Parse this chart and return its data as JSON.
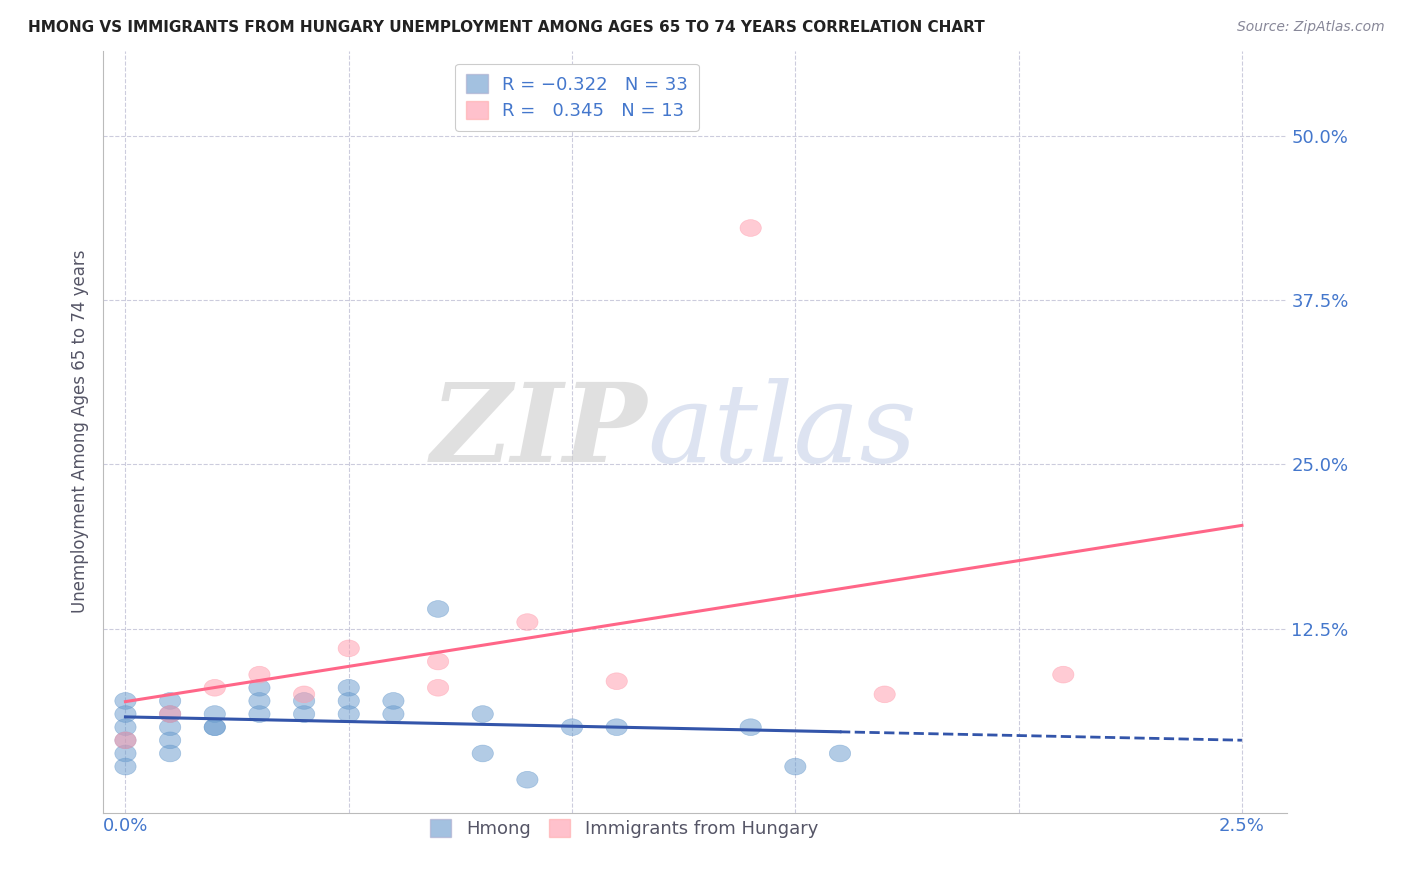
{
  "title": "HMONG VS IMMIGRANTS FROM HUNGARY UNEMPLOYMENT AMONG AGES 65 TO 74 YEARS CORRELATION CHART",
  "source": "Source: ZipAtlas.com",
  "ylabel": "Unemployment Among Ages 65 to 74 years",
  "ytick_labels": [
    "50.0%",
    "37.5%",
    "25.0%",
    "12.5%"
  ],
  "ytick_values": [
    0.5,
    0.375,
    0.25,
    0.125
  ],
  "xlim": [
    -0.0005,
    0.026
  ],
  "ylim": [
    -0.015,
    0.565
  ],
  "blue_color": "#6699CC",
  "pink_color": "#FF99AA",
  "blue_line_color": "#3355AA",
  "pink_line_color": "#FF6688",
  "axis_label_color": "#4477CC",
  "title_color": "#222222",
  "grid_color": "#CCCCDD",
  "hmong_x": [
    0.0,
    0.0,
    0.0,
    0.0,
    0.0,
    0.0,
    0.001,
    0.001,
    0.001,
    0.001,
    0.001,
    0.002,
    0.002,
    0.002,
    0.003,
    0.003,
    0.003,
    0.004,
    0.004,
    0.005,
    0.005,
    0.005,
    0.006,
    0.006,
    0.007,
    0.008,
    0.008,
    0.009,
    0.01,
    0.011,
    0.014,
    0.015,
    0.016
  ],
  "hmong_y": [
    0.05,
    0.06,
    0.07,
    0.03,
    0.04,
    0.02,
    0.05,
    0.06,
    0.07,
    0.04,
    0.03,
    0.05,
    0.06,
    0.05,
    0.06,
    0.07,
    0.08,
    0.07,
    0.06,
    0.06,
    0.07,
    0.08,
    0.06,
    0.07,
    0.14,
    0.06,
    0.03,
    0.01,
    0.05,
    0.05,
    0.05,
    0.02,
    0.03
  ],
  "hungary_x": [
    0.0,
    0.001,
    0.002,
    0.003,
    0.004,
    0.005,
    0.007,
    0.007,
    0.009,
    0.011,
    0.014,
    0.017,
    0.021
  ],
  "hungary_y": [
    0.04,
    0.06,
    0.08,
    0.09,
    0.075,
    0.11,
    0.08,
    0.1,
    0.13,
    0.085,
    0.43,
    0.075,
    0.09
  ],
  "hmong_regression": [
    -2.5,
    0.068
  ],
  "hungary_regression": [
    9.5,
    0.03
  ],
  "xgrid_values": [
    0.0,
    0.005,
    0.01,
    0.015,
    0.02,
    0.025
  ]
}
